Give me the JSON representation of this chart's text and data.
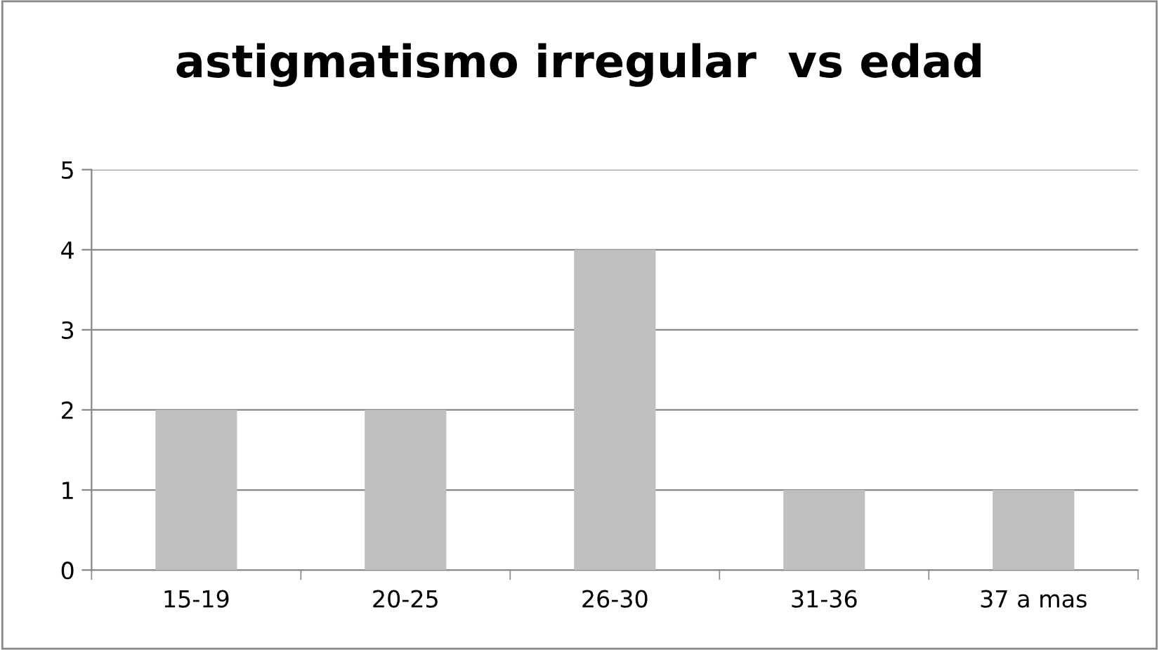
{
  "chart_data": {
    "type": "bar",
    "title": "astigmatismo irregular  vs edad",
    "categories": [
      "15-19",
      "20-25",
      "26-30",
      "31-36",
      "37 a mas"
    ],
    "values": [
      2,
      2,
      4,
      1,
      1
    ],
    "color": "#c0c0c0",
    "ylim": [
      0,
      5
    ],
    "yticks": [
      0,
      1,
      2,
      3,
      4,
      5
    ],
    "grid": "y",
    "legend": false
  }
}
